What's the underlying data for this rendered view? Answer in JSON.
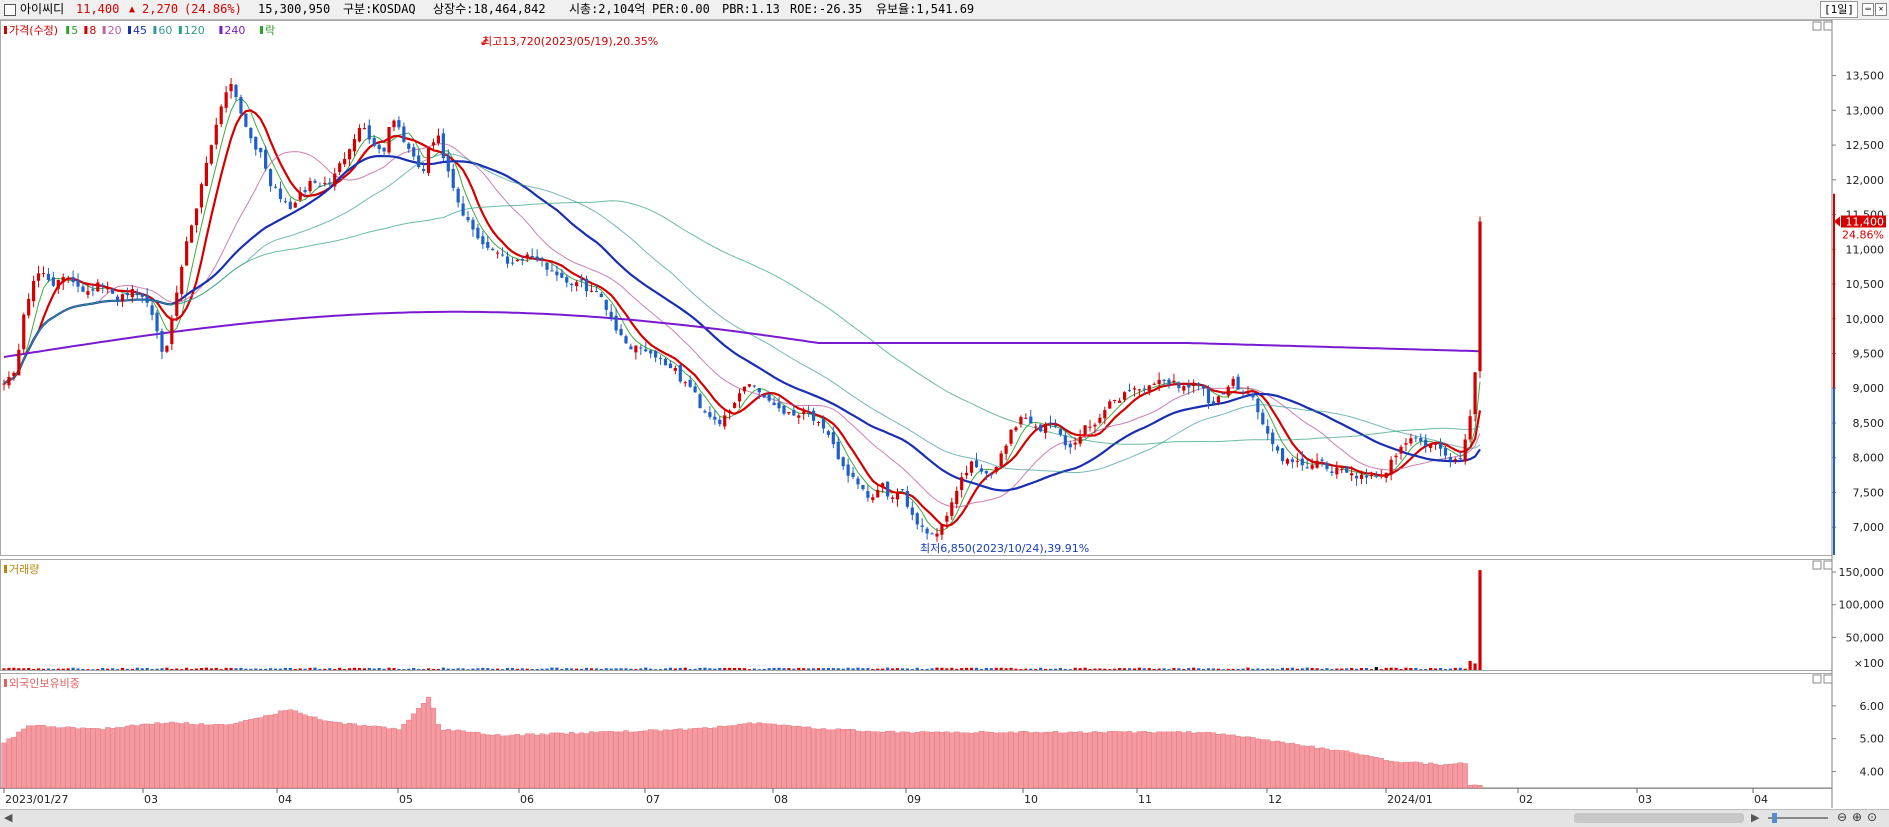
{
  "header": {
    "name": "아이씨디",
    "price": "11,400",
    "change_arrow": "▲",
    "change": "2,270",
    "change_pct": "(24.86%)",
    "volume": "15,300,950",
    "market": "구분:KOSDAQ",
    "listed": "상장수:18,464,842",
    "mktcap": "시총:2,104억",
    "per": "PER:0.00",
    "pbr": "PBR:1.13",
    "roe": "ROE:-26.35",
    "reserve": "유보율:1,541.69",
    "period": "[1일]",
    "colors": {
      "up": "#d40000",
      "name": "#000000"
    }
  },
  "price_panel": {
    "legend": [
      {
        "label": "가격(수정)",
        "color": "#d40000"
      },
      {
        "label": "5",
        "color": "#2fa02f"
      },
      {
        "label": "8",
        "color": "#d40000"
      },
      {
        "label": "20",
        "color": "#c060a0"
      },
      {
        "label": "45",
        "color": "#1a2fb0"
      },
      {
        "label": "60",
        "color": "#3a9a9a"
      },
      {
        "label": "120",
        "color": "#2aa07a"
      },
      {
        "label": "240",
        "color": "#7a1ad0"
      },
      {
        "label": "락",
        "color": "#2fa02f"
      }
    ],
    "high_annotation": "최고13,720(2023/05/19),20.35%",
    "low_annotation": "최저6,850(2023/10/24),39.91%",
    "last_price_label": "11,400",
    "last_pct_label": "24.86%"
  },
  "volume_panel": {
    "title": "거래량",
    "color": "#b8860b"
  },
  "foreign_panel": {
    "title": "외국인보유비중",
    "color": "#e06060"
  },
  "x_axis": {
    "labels": [
      "2023/01/27",
      "03",
      "04",
      "05",
      "06",
      "07",
      "08",
      "09",
      "10",
      "11",
      "12",
      "2024/01",
      "02",
      "03",
      "04"
    ]
  },
  "chart_data": [
    {
      "type": "candlestick",
      "name": "가격(수정)",
      "y_ticks": [
        "13,500",
        "13,000",
        "12,500",
        "12,000",
        "11,500",
        "11,000",
        "10,500",
        "10,000",
        "9,500",
        "9,000",
        "8,500",
        "8,000",
        "7,500",
        "7,000"
      ],
      "ylim": [
        6600,
        14300
      ],
      "approx_close_path": [
        [
          0,
          9100
        ],
        [
          15,
          9200
        ],
        [
          25,
          10200
        ],
        [
          40,
          10700
        ],
        [
          55,
          10500
        ],
        [
          70,
          10600
        ],
        [
          85,
          10400
        ],
        [
          100,
          10500
        ],
        [
          115,
          10300
        ],
        [
          130,
          10400
        ],
        [
          145,
          10300
        ],
        [
          155,
          10000
        ],
        [
          165,
          9400
        ],
        [
          175,
          10200
        ],
        [
          185,
          11000
        ],
        [
          195,
          11500
        ],
        [
          205,
          12200
        ],
        [
          215,
          12700
        ],
        [
          225,
          13300
        ],
        [
          233,
          13400
        ],
        [
          242,
          12900
        ],
        [
          252,
          12600
        ],
        [
          262,
          12300
        ],
        [
          272,
          11900
        ],
        [
          282,
          11700
        ],
        [
          292,
          11600
        ],
        [
          302,
          11800
        ],
        [
          312,
          12000
        ],
        [
          322,
          11900
        ],
        [
          333,
          12000
        ],
        [
          343,
          12300
        ],
        [
          353,
          12600
        ],
        [
          363,
          12800
        ],
        [
          373,
          12500
        ],
        [
          383,
          12400
        ],
        [
          393,
          12900
        ],
        [
          403,
          12600
        ],
        [
          413,
          12300
        ],
        [
          423,
          12100
        ],
        [
          430,
          12500
        ],
        [
          438,
          12600
        ],
        [
          446,
          12200
        ],
        [
          454,
          11800
        ],
        [
          462,
          11500
        ],
        [
          472,
          11300
        ],
        [
          482,
          11100
        ],
        [
          492,
          11000
        ],
        [
          502,
          10900
        ],
        [
          512,
          10800
        ],
        [
          522,
          10900
        ],
        [
          532,
          10900
        ],
        [
          542,
          10800
        ],
        [
          552,
          10700
        ],
        [
          562,
          10600
        ],
        [
          572,
          10500
        ],
        [
          582,
          10500
        ],
        [
          592,
          10400
        ],
        [
          602,
          10300
        ],
        [
          612,
          10000
        ],
        [
          622,
          9700
        ],
        [
          632,
          9600
        ],
        [
          642,
          9600
        ],
        [
          652,
          9500
        ],
        [
          662,
          9400
        ],
        [
          672,
          9300
        ],
        [
          682,
          9100
        ],
        [
          692,
          9000
        ],
        [
          702,
          8700
        ],
        [
          712,
          8600
        ],
        [
          722,
          8500
        ],
        [
          732,
          8700
        ],
        [
          742,
          9000
        ],
        [
          752,
          9100
        ],
        [
          762,
          8900
        ],
        [
          772,
          8800
        ],
        [
          782,
          8700
        ],
        [
          792,
          8600
        ],
        [
          802,
          8700
        ],
        [
          812,
          8600
        ],
        [
          822,
          8400
        ],
        [
          832,
          8200
        ],
        [
          842,
          7900
        ],
        [
          852,
          7700
        ],
        [
          862,
          7500
        ],
        [
          872,
          7400
        ],
        [
          882,
          7600
        ],
        [
          892,
          7400
        ],
        [
          902,
          7500
        ],
        [
          912,
          7200
        ],
        [
          922,
          7000
        ],
        [
          932,
          6900
        ],
        [
          942,
          7000
        ],
        [
          952,
          7400
        ],
        [
          962,
          7700
        ],
        [
          972,
          7900
        ],
        [
          982,
          7800
        ],
        [
          992,
          7700
        ],
        [
          1002,
          8100
        ],
        [
          1012,
          8400
        ],
        [
          1022,
          8600
        ],
        [
          1032,
          8500
        ],
        [
          1042,
          8400
        ],
        [
          1052,
          8500
        ],
        [
          1062,
          8300
        ],
        [
          1072,
          8100
        ],
        [
          1082,
          8400
        ],
        [
          1092,
          8500
        ],
        [
          1102,
          8600
        ],
        [
          1112,
          8800
        ],
        [
          1122,
          8900
        ],
        [
          1132,
          9000
        ],
        [
          1142,
          9000
        ],
        [
          1152,
          9000
        ],
        [
          1162,
          9100
        ],
        [
          1172,
          9100
        ],
        [
          1182,
          9000
        ],
        [
          1192,
          9100
        ],
        [
          1202,
          9000
        ],
        [
          1212,
          8700
        ],
        [
          1222,
          8900
        ],
        [
          1232,
          9100
        ],
        [
          1242,
          9000
        ],
        [
          1252,
          8900
        ],
        [
          1262,
          8500
        ],
        [
          1272,
          8200
        ],
        [
          1282,
          8000
        ],
        [
          1292,
          7900
        ],
        [
          1302,
          7900
        ],
        [
          1312,
          7900
        ],
        [
          1322,
          7900
        ],
        [
          1332,
          7800
        ],
        [
          1342,
          7800
        ],
        [
          1352,
          7800
        ],
        [
          1362,
          7700
        ],
        [
          1372,
          7700
        ],
        [
          1382,
          7700
        ],
        [
          1392,
          8000
        ],
        [
          1402,
          8200
        ],
        [
          1412,
          8300
        ],
        [
          1422,
          8200
        ],
        [
          1432,
          8200
        ],
        [
          1442,
          8100
        ],
        [
          1452,
          7900
        ],
        [
          1460,
          8000
        ],
        [
          1467,
          8400
        ],
        [
          1474,
          8800
        ],
        [
          1480,
          11400
        ]
      ],
      "moving_averages": [
        {
          "name": "5",
          "color": "#2fa02f"
        },
        {
          "name": "8",
          "color": "#d40000"
        },
        {
          "name": "20",
          "color": "#c060a0"
        },
        {
          "name": "45",
          "color": "#1a2fb0"
        },
        {
          "name": "60",
          "color": "#3a9a9a"
        },
        {
          "name": "120",
          "color": "#2aa07a"
        },
        {
          "name": "240",
          "color": "#7a1ad0"
        }
      ],
      "high": 13720,
      "low": 6850,
      "last": 11400
    },
    {
      "type": "bar",
      "name": "거래량",
      "y_ticks": [
        "150,000",
        "100,000",
        "50,000",
        "×100"
      ],
      "ylim": [
        0,
        170000
      ],
      "last_values": [
        2000,
        14000,
        10000,
        153009
      ]
    },
    {
      "type": "bar",
      "name": "외국인보유비중",
      "y_ticks": [
        "6.00",
        "5.00",
        "4.00"
      ],
      "ylim": [
        3.5,
        7.0
      ],
      "approx_values_path": [
        [
          0,
          4.8
        ],
        [
          30,
          5.4
        ],
        [
          100,
          5.3
        ],
        [
          170,
          5.5
        ],
        [
          230,
          5.4
        ],
        [
          290,
          5.9
        ],
        [
          330,
          5.5
        ],
        [
          400,
          5.3
        ],
        [
          430,
          6.3
        ],
        [
          440,
          5.3
        ],
        [
          500,
          5.1
        ],
        [
          600,
          5.2
        ],
        [
          700,
          5.3
        ],
        [
          760,
          5.5
        ],
        [
          820,
          5.3
        ],
        [
          900,
          5.2
        ],
        [
          1000,
          5.2
        ],
        [
          1100,
          5.2
        ],
        [
          1200,
          5.2
        ],
        [
          1260,
          5.0
        ],
        [
          1300,
          4.8
        ],
        [
          1350,
          4.6
        ],
        [
          1380,
          4.4
        ],
        [
          1400,
          4.3
        ],
        [
          1450,
          4.2
        ],
        [
          1465,
          4.3
        ],
        [
          1470,
          3.6
        ],
        [
          1480,
          3.6
        ]
      ]
    }
  ]
}
